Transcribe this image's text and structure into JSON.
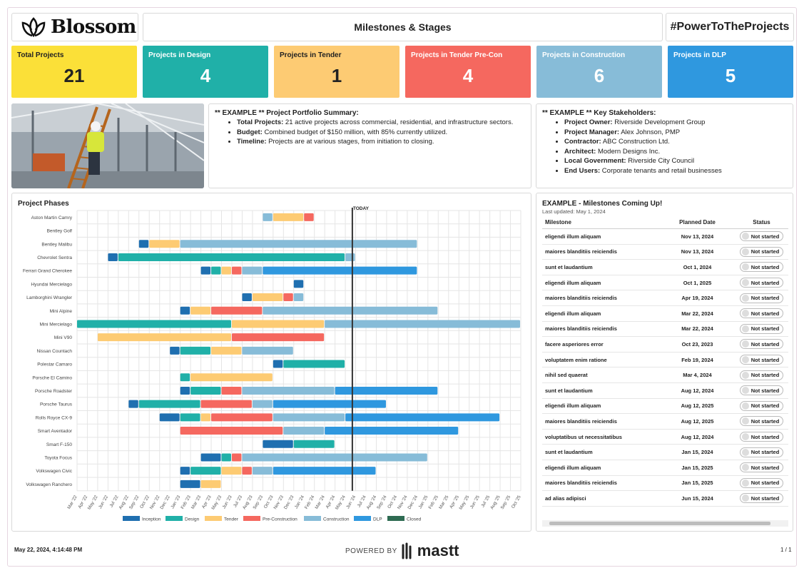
{
  "header": {
    "logo_text": "Blossom",
    "title": "Milestones & Stages",
    "hashtag": "#PowerToTheProjects"
  },
  "stats": [
    {
      "label": "Total Projects",
      "value": "21",
      "color": "#fbe038",
      "text": "#222"
    },
    {
      "label": "Projects in Design",
      "value": "4",
      "color": "#20b0a8",
      "text": "#fff"
    },
    {
      "label": "Projects in Tender",
      "value": "1",
      "color": "#fdcb73",
      "text": "#222"
    },
    {
      "label": "Projects in Tender Pre-Con",
      "value": "4",
      "color": "#f5685f",
      "text": "#fff"
    },
    {
      "label": "Projects in Construction",
      "value": "6",
      "color": "#87bcd8",
      "text": "#fff"
    },
    {
      "label": "Projects in DLP",
      "value": "5",
      "color": "#2f98df",
      "text": "#fff"
    }
  ],
  "summary": {
    "title": "** EXAMPLE ** Project Portfolio Summary:",
    "items": [
      {
        "k": "Total Projects:",
        "v": " 21 active projects across commercial, residential, and infrastructure sectors."
      },
      {
        "k": "Budget:",
        "v": " Combined budget of $150 million, with 85% currently utilized."
      },
      {
        "k": "Timeline:",
        "v": " Projects are at various stages, from initiation to closing."
      }
    ]
  },
  "stakeholders": {
    "title": "** EXAMPLE ** Key Stakeholders:",
    "items": [
      {
        "k": "Project Owner:",
        "v": " Riverside Development Group"
      },
      {
        "k": "Project Manager:",
        "v": " Alex Johnson, PMP"
      },
      {
        "k": "Contractor:",
        "v": " ABC Construction Ltd."
      },
      {
        "k": "Architect:",
        "v": " Modern Designs Inc."
      },
      {
        "k": "Local Government:",
        "v": " Riverside City Council"
      },
      {
        "k": "End Users:",
        "v": " Corporate tenants and retail businesses"
      }
    ]
  },
  "phases": {
    "title": "Project Phases",
    "today_label": "TODAY"
  },
  "chart_data": {
    "type": "gantt",
    "today": "2024-05-22",
    "x_ticks": [
      "Mar '22",
      "Apr '22",
      "May '22",
      "Jun '22",
      "Jul '22",
      "Aug '22",
      "Sep '22",
      "Oct '22",
      "Nov '22",
      "Dec '22",
      "Jan '23",
      "Feb '23",
      "Mar '23",
      "Apr '23",
      "May '23",
      "Jun '23",
      "Jul '23",
      "Aug '23",
      "Sep '23",
      "Oct '23",
      "Nov '23",
      "Dec '23",
      "Jan '24",
      "Feb '24",
      "Mar '24",
      "Apr '24",
      "May '24",
      "Jun '24",
      "Jul '24",
      "Aug '24",
      "Sep '24",
      "Oct '24",
      "Nov '24",
      "Dec '24",
      "Jan '25",
      "Feb '25",
      "Mar '25",
      "Apr '25",
      "May '25",
      "Jun '25",
      "Jul '25",
      "Aug '25",
      "Sep '25",
      "Oct '25"
    ],
    "phases": [
      {
        "name": "Inception",
        "color": "#1f6fb0"
      },
      {
        "name": "Design",
        "color": "#20b0a8"
      },
      {
        "name": "Tender",
        "color": "#fdcb73"
      },
      {
        "name": "Pre-Construction",
        "color": "#f5685f"
      },
      {
        "name": "Construction",
        "color": "#87bcd8"
      },
      {
        "name": "DLP",
        "color": "#2f98df"
      },
      {
        "name": "Closed",
        "color": "#2e6b52"
      }
    ],
    "projects": [
      {
        "name": "Aston Martin Camry",
        "segments": [
          [
            "Construction",
            "2023-09",
            "2023-10"
          ],
          [
            "Tender",
            "2023-10",
            "2024-01"
          ],
          [
            "Pre-Construction",
            "2024-01",
            "2024-02"
          ]
        ]
      },
      {
        "name": "Bentley Golf",
        "segments": []
      },
      {
        "name": "Bentley Malibu",
        "segments": [
          [
            "Inception",
            "2022-09",
            "2022-10"
          ],
          [
            "Tender",
            "2022-10",
            "2023-01"
          ],
          [
            "Construction",
            "2023-01",
            "2024-12"
          ]
        ]
      },
      {
        "name": "Chevrolet Sentra",
        "segments": [
          [
            "Inception",
            "2022-06",
            "2022-07"
          ],
          [
            "Design",
            "2022-07",
            "2024-05"
          ],
          [
            "Construction",
            "2024-05",
            "2024-06"
          ]
        ]
      },
      {
        "name": "Ferrari Grand Cherokee",
        "segments": [
          [
            "Inception",
            "2023-03",
            "2023-04"
          ],
          [
            "Design",
            "2023-04",
            "2023-05"
          ],
          [
            "Tender",
            "2023-05",
            "2023-06"
          ],
          [
            "Pre-Construction",
            "2023-06",
            "2023-07"
          ],
          [
            "Construction",
            "2023-07",
            "2023-09"
          ],
          [
            "DLP",
            "2023-09",
            "2024-12"
          ]
        ]
      },
      {
        "name": "Hyundai Mercielago",
        "segments": [
          [
            "Inception",
            "2023-12",
            "2024-01"
          ]
        ]
      },
      {
        "name": "Lamborghini Wrangler",
        "segments": [
          [
            "Inception",
            "2023-07",
            "2023-08"
          ],
          [
            "Tender",
            "2023-08",
            "2023-11"
          ],
          [
            "Pre-Construction",
            "2023-11",
            "2023-12"
          ],
          [
            "Construction",
            "2023-12",
            "2024-01"
          ]
        ]
      },
      {
        "name": "Mini Alpine",
        "segments": [
          [
            "Inception",
            "2023-01",
            "2023-02"
          ],
          [
            "Tender",
            "2023-02",
            "2023-04"
          ],
          [
            "Pre-Construction",
            "2023-04",
            "2023-09"
          ],
          [
            "Construction",
            "2023-09",
            "2025-02"
          ]
        ]
      },
      {
        "name": "Mini Mercielago",
        "segments": [
          [
            "Design",
            "2022-03",
            "2023-06"
          ],
          [
            "Tender",
            "2023-06",
            "2024-03"
          ],
          [
            "Construction",
            "2024-03",
            "2025-10"
          ]
        ]
      },
      {
        "name": "Mini V90",
        "segments": [
          [
            "Tender",
            "2022-05",
            "2023-06"
          ],
          [
            "Pre-Construction",
            "2023-06",
            "2024-03"
          ]
        ]
      },
      {
        "name": "Nissan Countach",
        "segments": [
          [
            "Inception",
            "2022-12",
            "2023-01"
          ],
          [
            "Design",
            "2023-01",
            "2023-04"
          ],
          [
            "Tender",
            "2023-04",
            "2023-07"
          ],
          [
            "Construction",
            "2023-07",
            "2023-12"
          ]
        ]
      },
      {
        "name": "Polestar Camaro",
        "segments": [
          [
            "Inception",
            "2023-10",
            "2023-11"
          ],
          [
            "Design",
            "2023-11",
            "2024-05"
          ]
        ]
      },
      {
        "name": "Porsche El Camino",
        "segments": [
          [
            "Design",
            "2023-01",
            "2023-02"
          ],
          [
            "Tender",
            "2023-02",
            "2023-10"
          ]
        ]
      },
      {
        "name": "Porsche Roadster",
        "segments": [
          [
            "Inception",
            "2023-01",
            "2023-02"
          ],
          [
            "Design",
            "2023-02",
            "2023-05"
          ],
          [
            "Pre-Construction",
            "2023-05",
            "2023-07"
          ],
          [
            "Construction",
            "2023-07",
            "2024-04"
          ],
          [
            "DLP",
            "2024-04",
            "2025-02"
          ]
        ]
      },
      {
        "name": "Porsche Taurus",
        "segments": [
          [
            "Inception",
            "2022-08",
            "2022-09"
          ],
          [
            "Design",
            "2022-09",
            "2023-03"
          ],
          [
            "Pre-Construction",
            "2023-03",
            "2023-08"
          ],
          [
            "Construction",
            "2023-08",
            "2023-10"
          ],
          [
            "DLP",
            "2023-10",
            "2024-09"
          ]
        ]
      },
      {
        "name": "Rolls Royce CX-9",
        "segments": [
          [
            "Inception",
            "2022-11",
            "2023-01"
          ],
          [
            "Design",
            "2023-01",
            "2023-03"
          ],
          [
            "Tender",
            "2023-03",
            "2023-04"
          ],
          [
            "Pre-Construction",
            "2023-04",
            "2023-10"
          ],
          [
            "Construction",
            "2023-10",
            "2024-05"
          ],
          [
            "DLP",
            "2024-05",
            "2025-08"
          ]
        ]
      },
      {
        "name": "Smart Aventador",
        "segments": [
          [
            "Pre-Construction",
            "2023-01",
            "2023-11"
          ],
          [
            "Construction",
            "2023-11",
            "2024-03"
          ],
          [
            "DLP",
            "2024-03",
            "2025-04"
          ]
        ]
      },
      {
        "name": "Smart F-150",
        "segments": [
          [
            "Inception",
            "2023-09",
            "2023-12"
          ],
          [
            "Design",
            "2023-12",
            "2024-04"
          ]
        ]
      },
      {
        "name": "Toyota Focus",
        "segments": [
          [
            "Inception",
            "2023-03",
            "2023-05"
          ],
          [
            "Design",
            "2023-05",
            "2023-06"
          ],
          [
            "Pre-Construction",
            "2023-06",
            "2023-07"
          ],
          [
            "Construction",
            "2023-07",
            "2025-01"
          ]
        ]
      },
      {
        "name": "Volkswagen Civic",
        "segments": [
          [
            "Inception",
            "2023-01",
            "2023-02"
          ],
          [
            "Design",
            "2023-02",
            "2023-05"
          ],
          [
            "Tender",
            "2023-05",
            "2023-07"
          ],
          [
            "Pre-Construction",
            "2023-07",
            "2023-08"
          ],
          [
            "Construction",
            "2023-08",
            "2023-10"
          ],
          [
            "DLP",
            "2023-10",
            "2024-08"
          ]
        ]
      },
      {
        "name": "Volkswagen Ranchero",
        "segments": [
          [
            "Inception",
            "2023-01",
            "2023-03"
          ],
          [
            "Tender",
            "2023-03",
            "2023-05"
          ]
        ]
      }
    ]
  },
  "milestones": {
    "title": "EXAMPLE - Milestones Coming Up!",
    "updated": "Last updated: May 1, 2024",
    "headers": {
      "milestone": "Milestone",
      "date": "Planned Date",
      "status": "Status"
    },
    "rows": [
      {
        "name": "eligendi illum aliquam",
        "date": "Nov 13, 2024",
        "status": "Not started"
      },
      {
        "name": "maiores blanditiis reiciendis",
        "date": "Nov 13, 2024",
        "status": "Not started"
      },
      {
        "name": "sunt et laudantium",
        "date": "Oct 1, 2024",
        "status": "Not started"
      },
      {
        "name": "eligendi illum aliquam",
        "date": "Oct 1, 2025",
        "status": "Not started"
      },
      {
        "name": "maiores blanditiis reiciendis",
        "date": "Apr 19, 2024",
        "status": "Not started"
      },
      {
        "name": "eligendi illum aliquam",
        "date": "Mar 22, 2024",
        "status": "Not started"
      },
      {
        "name": "maiores blanditiis reiciendis",
        "date": "Mar 22, 2024",
        "status": "Not started"
      },
      {
        "name": "facere asperiores error",
        "date": "Oct 23, 2023",
        "status": "Not started"
      },
      {
        "name": "voluptatem enim ratione",
        "date": "Feb 19, 2024",
        "status": "Not started"
      },
      {
        "name": "nihil sed quaerat",
        "date": "Mar 4, 2024",
        "status": "Not started"
      },
      {
        "name": "sunt et laudantium",
        "date": "Aug 12, 2024",
        "status": "Not started"
      },
      {
        "name": "eligendi illum aliquam",
        "date": "Aug 12, 2025",
        "status": "Not started"
      },
      {
        "name": "maiores blanditiis reiciendis",
        "date": "Aug 12, 2025",
        "status": "Not started"
      },
      {
        "name": "voluptatibus ut necessitatibus",
        "date": "Aug 12, 2024",
        "status": "Not started"
      },
      {
        "name": "sunt et laudantium",
        "date": "Jan 15, 2024",
        "status": "Not started"
      },
      {
        "name": "eligendi illum aliquam",
        "date": "Jan 15, 2025",
        "status": "Not started"
      },
      {
        "name": "maiores blanditiis reiciendis",
        "date": "Jan 15, 2025",
        "status": "Not started"
      },
      {
        "name": "ad alias adipisci",
        "date": "Jun 15, 2024",
        "status": "Not started"
      }
    ]
  },
  "footer": {
    "date": "May 22, 2024, 4:14:48 PM",
    "powered": "POWERED BY",
    "brand": "mastt",
    "page": "1 / 1"
  }
}
